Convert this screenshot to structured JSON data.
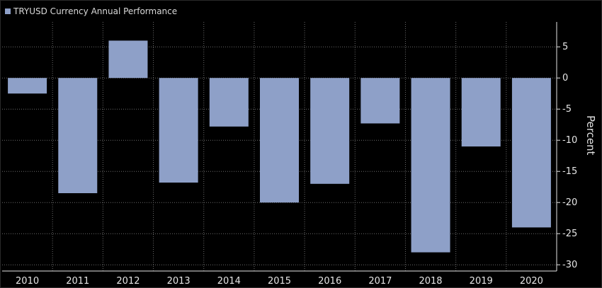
{
  "chart_data": {
    "type": "bar",
    "title": "",
    "legend": [
      {
        "name": "TRYUSD Currency Annual Performance",
        "color": "#8ea0c8"
      }
    ],
    "categories": [
      "2010",
      "2011",
      "2012",
      "2013",
      "2014",
      "2015",
      "2016",
      "2017",
      "2018",
      "2019",
      "2020"
    ],
    "series": [
      {
        "name": "TRYUSD Currency Annual Performance",
        "values": [
          -2.5,
          -18.5,
          6.0,
          -16.8,
          -7.8,
          -20.0,
          -17.0,
          -7.3,
          -28.0,
          -11.0,
          -24.0
        ]
      }
    ],
    "xlabel": "",
    "ylabel": "Percent",
    "ylim": [
      -31,
      9
    ],
    "yticks": [
      5,
      0,
      -5,
      -10,
      -15,
      -20,
      -25,
      -30
    ],
    "ytick_labels": [
      "5",
      "0",
      "-5",
      "-10",
      "-15",
      "-20",
      "-25",
      "-30"
    ],
    "grid": true,
    "legend_position": "top-left",
    "y_axis_side": "right",
    "colors": {
      "bar": "#8ea0c8",
      "background": "#000000",
      "grid": "#6a6a6a",
      "text": "#e6e6e6"
    }
  }
}
